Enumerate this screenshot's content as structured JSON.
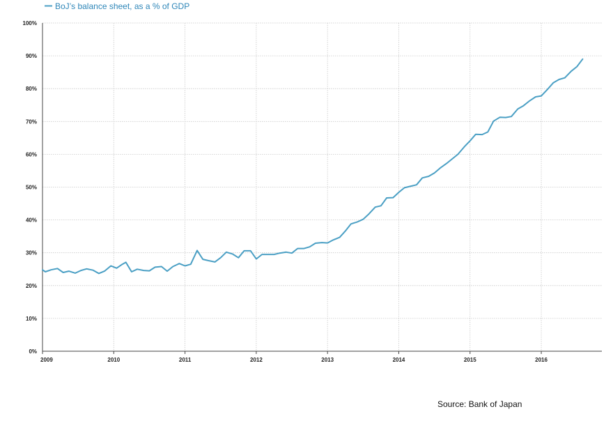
{
  "chart_data": {
    "type": "line",
    "legend": {
      "placement": "top-left"
    },
    "series": [
      {
        "name": "BoJ’s balance sheet, as a % of GDP",
        "color": "#4a9fc4",
        "points": [
          [
            2009.0,
            24.8
          ],
          [
            2009.04,
            24.2
          ],
          [
            2009.12,
            24.8
          ],
          [
            2009.21,
            25.2
          ],
          [
            2009.29,
            24.0
          ],
          [
            2009.37,
            24.4
          ],
          [
            2009.46,
            23.8
          ],
          [
            2009.54,
            24.6
          ],
          [
            2009.62,
            25.1
          ],
          [
            2009.71,
            24.7
          ],
          [
            2009.79,
            23.7
          ],
          [
            2009.87,
            24.4
          ],
          [
            2009.96,
            26.0
          ],
          [
            2010.04,
            25.3
          ],
          [
            2010.12,
            26.5
          ],
          [
            2010.17,
            27.1
          ],
          [
            2010.25,
            24.2
          ],
          [
            2010.33,
            25.0
          ],
          [
            2010.42,
            24.6
          ],
          [
            2010.5,
            24.5
          ],
          [
            2010.58,
            25.6
          ],
          [
            2010.67,
            25.8
          ],
          [
            2010.75,
            24.4
          ],
          [
            2010.83,
            25.8
          ],
          [
            2010.92,
            26.7
          ],
          [
            2011.0,
            26.0
          ],
          [
            2011.08,
            26.5
          ],
          [
            2011.17,
            30.7
          ],
          [
            2011.25,
            28.0
          ],
          [
            2011.33,
            27.6
          ],
          [
            2011.42,
            27.2
          ],
          [
            2011.5,
            28.5
          ],
          [
            2011.58,
            30.2
          ],
          [
            2011.67,
            29.6
          ],
          [
            2011.75,
            28.5
          ],
          [
            2011.83,
            30.6
          ],
          [
            2011.92,
            30.6
          ],
          [
            2012.0,
            28.1
          ],
          [
            2012.08,
            29.5
          ],
          [
            2012.17,
            29.5
          ],
          [
            2012.25,
            29.5
          ],
          [
            2012.33,
            29.9
          ],
          [
            2012.42,
            30.2
          ],
          [
            2012.5,
            29.9
          ],
          [
            2012.58,
            31.3
          ],
          [
            2012.67,
            31.3
          ],
          [
            2012.75,
            31.8
          ],
          [
            2012.83,
            32.9
          ],
          [
            2012.92,
            33.1
          ],
          [
            2013.0,
            33.0
          ],
          [
            2013.08,
            33.9
          ],
          [
            2013.17,
            34.7
          ],
          [
            2013.25,
            36.6
          ],
          [
            2013.33,
            38.8
          ],
          [
            2013.42,
            39.4
          ],
          [
            2013.5,
            40.2
          ],
          [
            2013.58,
            41.8
          ],
          [
            2013.67,
            43.9
          ],
          [
            2013.75,
            44.3
          ],
          [
            2013.83,
            46.7
          ],
          [
            2013.92,
            46.8
          ],
          [
            2014.0,
            48.4
          ],
          [
            2014.08,
            49.8
          ],
          [
            2014.17,
            50.3
          ],
          [
            2014.25,
            50.7
          ],
          [
            2014.33,
            52.8
          ],
          [
            2014.42,
            53.3
          ],
          [
            2014.5,
            54.3
          ],
          [
            2014.58,
            55.8
          ],
          [
            2014.67,
            57.2
          ],
          [
            2014.75,
            58.6
          ],
          [
            2014.83,
            60.0
          ],
          [
            2014.92,
            62.3
          ],
          [
            2015.0,
            64.1
          ],
          [
            2015.08,
            66.1
          ],
          [
            2015.17,
            66.0
          ],
          [
            2015.25,
            66.8
          ],
          [
            2015.33,
            70.1
          ],
          [
            2015.42,
            71.3
          ],
          [
            2015.5,
            71.2
          ],
          [
            2015.58,
            71.5
          ],
          [
            2015.67,
            73.8
          ],
          [
            2015.75,
            74.8
          ],
          [
            2015.83,
            76.2
          ],
          [
            2015.92,
            77.5
          ],
          [
            2016.0,
            77.8
          ],
          [
            2016.08,
            79.6
          ],
          [
            2016.17,
            81.8
          ],
          [
            2016.25,
            82.8
          ],
          [
            2016.33,
            83.3
          ],
          [
            2016.42,
            85.3
          ],
          [
            2016.5,
            86.7
          ],
          [
            2016.58,
            89.0
          ]
        ]
      }
    ],
    "x_ticks": [
      "2009",
      "2010",
      "2011",
      "2012",
      "2013",
      "2014",
      "2015",
      "2016"
    ],
    "x_tick_values": [
      2009,
      2010,
      2011,
      2012,
      2013,
      2014,
      2015,
      2016
    ],
    "xlim": [
      2009,
      2016.85
    ],
    "y_ticks": [
      "0%",
      "10%",
      "20%",
      "30%",
      "40%",
      "50%",
      "60%",
      "70%",
      "80%",
      "90%",
      "100%"
    ],
    "y_tick_values": [
      0,
      10,
      20,
      30,
      40,
      50,
      60,
      70,
      80,
      90,
      100
    ],
    "ylim": [
      0,
      100
    ],
    "grid": true,
    "source": "Source: Bank of Japan"
  }
}
